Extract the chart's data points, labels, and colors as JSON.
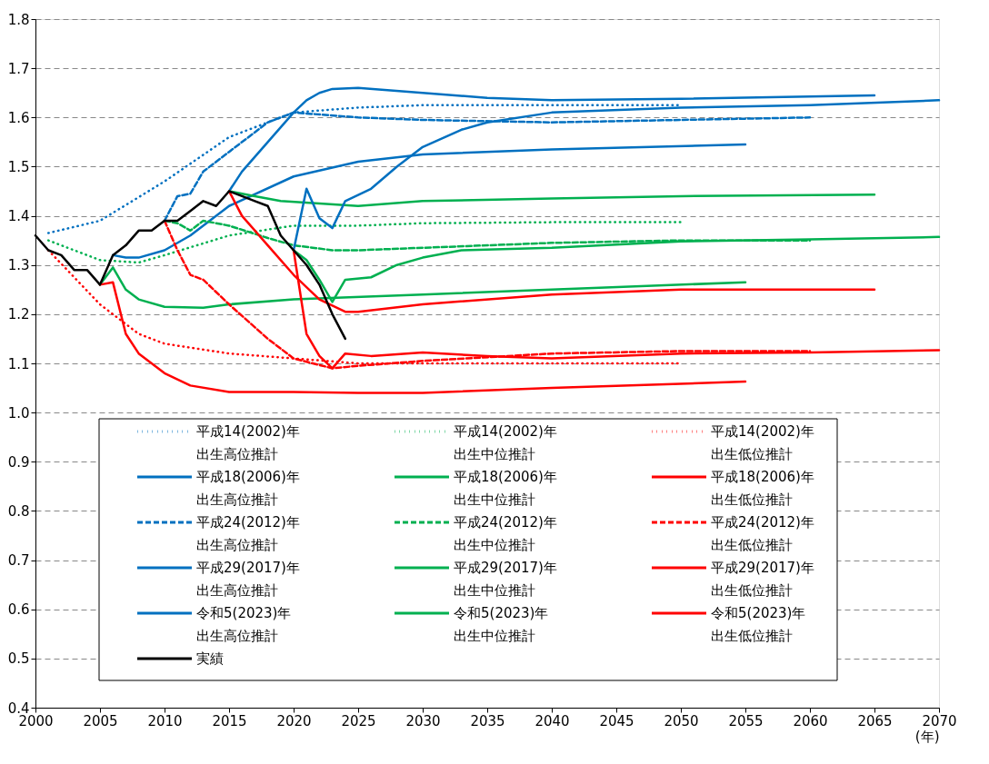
{
  "chart_data": {
    "type": "line",
    "xlabel": "(年)",
    "xlim": [
      2000,
      2070
    ],
    "xticks": [
      2000,
      2005,
      2010,
      2015,
      2020,
      2025,
      2030,
      2035,
      2040,
      2045,
      2050,
      2055,
      2060,
      2065,
      2070
    ],
    "ylim": [
      0.4,
      1.8
    ],
    "yticks": [
      {
        "value": 0.4,
        "label": "0.4"
      },
      {
        "value": 0.5,
        "label": "0.5"
      },
      {
        "value": 0.6,
        "label": "0.6"
      },
      {
        "value": 0.7,
        "label": "0.7"
      },
      {
        "value": 0.8,
        "label": "0.8"
      },
      {
        "value": 0.9,
        "label": "0.9"
      },
      {
        "value": 1.0,
        "label": "1.0"
      },
      {
        "value": 1.1,
        "label": "1.1"
      },
      {
        "value": 1.2,
        "label": "1.2"
      },
      {
        "value": 1.3,
        "label": "1.3"
      },
      {
        "value": 1.4,
        "label": "1.4"
      },
      {
        "value": 1.5,
        "label": "1.5"
      },
      {
        "value": 1.6,
        "label": "1.6"
      },
      {
        "value": 1.7,
        "label": "1.7"
      },
      {
        "value": 1.8,
        "label": "1.8"
      }
    ],
    "grid": "y",
    "legend": "bottom left",
    "marker": "none",
    "series": [
      {
        "name": "平成14(2002)年出生高位推計",
        "color": "#0070c0",
        "line_style": "dotted",
        "x": [
          2001,
          2005,
          2010,
          2015,
          2020,
          2025,
          2030,
          2040,
          2050
        ],
        "values": [
          1.365,
          1.39,
          1.47,
          1.56,
          1.61,
          1.62,
          1.625,
          1.625,
          1.625
        ]
      },
      {
        "name": "平成14(2002)年出生中位推計",
        "color": "#00b050",
        "line_style": "dotted",
        "x": [
          2001,
          2005,
          2008,
          2010,
          2015,
          2020,
          2025,
          2030,
          2040,
          2050
        ],
        "values": [
          1.35,
          1.31,
          1.305,
          1.32,
          1.36,
          1.38,
          1.38,
          1.385,
          1.387,
          1.387
        ]
      },
      {
        "name": "平成14(2002)年出生低位推計",
        "color": "#ff0000",
        "line_style": "dotted",
        "x": [
          2001,
          2005,
          2008,
          2010,
          2015,
          2020,
          2025,
          2030,
          2040,
          2050
        ],
        "values": [
          1.33,
          1.22,
          1.16,
          1.14,
          1.12,
          1.11,
          1.1,
          1.1,
          1.1,
          1.1
        ]
      },
      {
        "name": "平成18(2006)年出生高位推計",
        "color": "#0070c0",
        "line_style": "solid",
        "x": [
          2006,
          2007,
          2008,
          2010,
          2012,
          2015,
          2020,
          2025,
          2030,
          2040,
          2055
        ],
        "values": [
          1.32,
          1.315,
          1.315,
          1.33,
          1.36,
          1.42,
          1.48,
          1.51,
          1.525,
          1.535,
          1.545
        ]
      },
      {
        "name": "平成18(2006)年出生中位推計",
        "color": "#00b050",
        "line_style": "solid",
        "x": [
          2005,
          2006,
          2007,
          2008,
          2010,
          2013,
          2015,
          2020,
          2030,
          2040,
          2055
        ],
        "values": [
          1.26,
          1.295,
          1.25,
          1.23,
          1.215,
          1.213,
          1.22,
          1.23,
          1.24,
          1.25,
          1.265
        ]
      },
      {
        "name": "平成18(2006)年出生低位推計",
        "color": "#ff0000",
        "line_style": "solid",
        "x": [
          2005,
          2006,
          2007,
          2008,
          2010,
          2012,
          2015,
          2020,
          2025,
          2030,
          2040,
          2055
        ],
        "values": [
          1.26,
          1.265,
          1.16,
          1.12,
          1.08,
          1.055,
          1.042,
          1.042,
          1.04,
          1.04,
          1.05,
          1.063
        ]
      },
      {
        "name": "平成24(2012)年出生高位推計",
        "color": "#0070c0",
        "line_style": "dashed",
        "x": [
          2010,
          2011,
          2012,
          2013,
          2015,
          2018,
          2020,
          2025,
          2030,
          2040,
          2050,
          2060
        ],
        "values": [
          1.39,
          1.44,
          1.445,
          1.49,
          1.53,
          1.59,
          1.61,
          1.6,
          1.595,
          1.59,
          1.595,
          1.6
        ]
      },
      {
        "name": "平成24(2012)年出生中位推計",
        "color": "#00b050",
        "line_style": "dashed",
        "x": [
          2010,
          2011,
          2012,
          2013,
          2015,
          2018,
          2020,
          2023,
          2025,
          2030,
          2040,
          2050,
          2060
        ],
        "values": [
          1.39,
          1.385,
          1.37,
          1.39,
          1.38,
          1.355,
          1.34,
          1.33,
          1.33,
          1.335,
          1.345,
          1.35,
          1.35
        ]
      },
      {
        "name": "平成24(2012)年出生低位推計",
        "color": "#ff0000",
        "line_style": "dashed",
        "x": [
          2010,
          2011,
          2012,
          2013,
          2015,
          2018,
          2020,
          2023,
          2025,
          2030,
          2040,
          2050,
          2060
        ],
        "values": [
          1.39,
          1.33,
          1.28,
          1.27,
          1.22,
          1.15,
          1.11,
          1.09,
          1.095,
          1.105,
          1.12,
          1.125,
          1.125
        ]
      },
      {
        "name": "平成29(2017)年出生高位推計",
        "color": "#0070c0",
        "line_style": "solid",
        "x": [
          2015,
          2016,
          2017,
          2018,
          2020,
          2021,
          2022,
          2023,
          2025,
          2030,
          2035,
          2040,
          2050,
          2065
        ],
        "values": [
          1.45,
          1.49,
          1.52,
          1.55,
          1.61,
          1.635,
          1.65,
          1.658,
          1.66,
          1.65,
          1.64,
          1.635,
          1.638,
          1.645
        ]
      },
      {
        "name": "平成29(2017)年出生中位推計",
        "color": "#00b050",
        "line_style": "solid",
        "x": [
          2015,
          2017,
          2019,
          2022,
          2025,
          2030,
          2040,
          2050,
          2065
        ],
        "values": [
          1.45,
          1.44,
          1.43,
          1.425,
          1.42,
          1.43,
          1.435,
          1.44,
          1.443
        ]
      },
      {
        "name": "平成29(2017)年出生低位推計",
        "color": "#ff0000",
        "line_style": "solid",
        "x": [
          2015,
          2016,
          2018,
          2020,
          2022,
          2024,
          2025,
          2030,
          2040,
          2050,
          2065
        ],
        "values": [
          1.45,
          1.4,
          1.34,
          1.28,
          1.23,
          1.205,
          1.205,
          1.22,
          1.24,
          1.25,
          1.25
        ]
      },
      {
        "name": "令和5(2023)年出生高位推計",
        "color": "#0070c0",
        "line_style": "solid",
        "x": [
          2020,
          2021,
          2022,
          2023,
          2024,
          2026,
          2028,
          2030,
          2033,
          2035,
          2040,
          2050,
          2060,
          2070
        ],
        "values": [
          1.33,
          1.455,
          1.395,
          1.375,
          1.43,
          1.455,
          1.5,
          1.54,
          1.575,
          1.59,
          1.61,
          1.62,
          1.625,
          1.635
        ]
      },
      {
        "name": "令和5(2023)年出生中位推計",
        "color": "#00b050",
        "line_style": "solid",
        "x": [
          2020,
          2021,
          2022,
          2023,
          2024,
          2026,
          2028,
          2030,
          2033,
          2040,
          2050,
          2060,
          2070
        ],
        "values": [
          1.33,
          1.31,
          1.27,
          1.225,
          1.27,
          1.275,
          1.3,
          1.315,
          1.33,
          1.335,
          1.348,
          1.352,
          1.357
        ]
      },
      {
        "name": "令和5(2023)年出生低位推計",
        "color": "#ff0000",
        "line_style": "solid",
        "x": [
          2020,
          2021,
          2022,
          2023,
          2024,
          2026,
          2030,
          2035,
          2040,
          2050,
          2060,
          2070
        ],
        "values": [
          1.33,
          1.16,
          1.115,
          1.09,
          1.12,
          1.115,
          1.122,
          1.115,
          1.11,
          1.12,
          1.122,
          1.127
        ]
      },
      {
        "name": "実績",
        "color": "#000000",
        "line_style": "solid",
        "x": [
          2000,
          2001,
          2002,
          2003,
          2004,
          2005,
          2006,
          2007,
          2008,
          2009,
          2010,
          2011,
          2012,
          2013,
          2014,
          2015,
          2016,
          2017,
          2018,
          2019,
          2020,
          2021,
          2022,
          2023,
          2024
        ],
        "values": [
          1.36,
          1.33,
          1.32,
          1.29,
          1.29,
          1.26,
          1.32,
          1.34,
          1.37,
          1.37,
          1.39,
          1.39,
          1.41,
          1.43,
          1.42,
          1.45,
          1.44,
          1.43,
          1.42,
          1.36,
          1.33,
          1.3,
          1.26,
          1.2,
          1.15
        ]
      }
    ]
  }
}
